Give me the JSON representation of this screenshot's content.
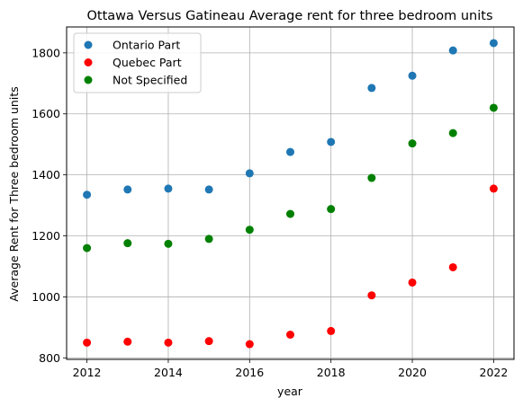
{
  "chart_data": {
    "type": "scatter",
    "title": "Ottawa Versus Gatineau Average rent for three bedroom units",
    "xlabel": "year",
    "ylabel": "Average Rent for Three bedroom units",
    "xlim": [
      2011.5,
      2022.5
    ],
    "ylim": [
      795,
      1885
    ],
    "xticks": [
      2012,
      2014,
      2016,
      2018,
      2020,
      2022
    ],
    "yticks": [
      800,
      1000,
      1200,
      1400,
      1600,
      1800
    ],
    "grid": true,
    "legend": "top-left",
    "x": [
      2012,
      2013,
      2014,
      2015,
      2016,
      2017,
      2018,
      2019,
      2020,
      2021,
      2022
    ],
    "series": [
      {
        "name": "Ontario Part",
        "color": "#1f77b4",
        "values": [
          1335,
          1352,
          1355,
          1352,
          1405,
          1475,
          1508,
          1685,
          1725,
          1808,
          1832
        ]
      },
      {
        "name": "Quebec Part",
        "color": "#ff0000",
        "values": [
          850,
          853,
          850,
          855,
          845,
          876,
          888,
          1005,
          1047,
          1097,
          1355
        ]
      },
      {
        "name": "Not Specified",
        "color": "#008000",
        "values": [
          1160,
          1176,
          1174,
          1190,
          1220,
          1272,
          1288,
          1390,
          1503,
          1537,
          1620
        ]
      }
    ]
  }
}
